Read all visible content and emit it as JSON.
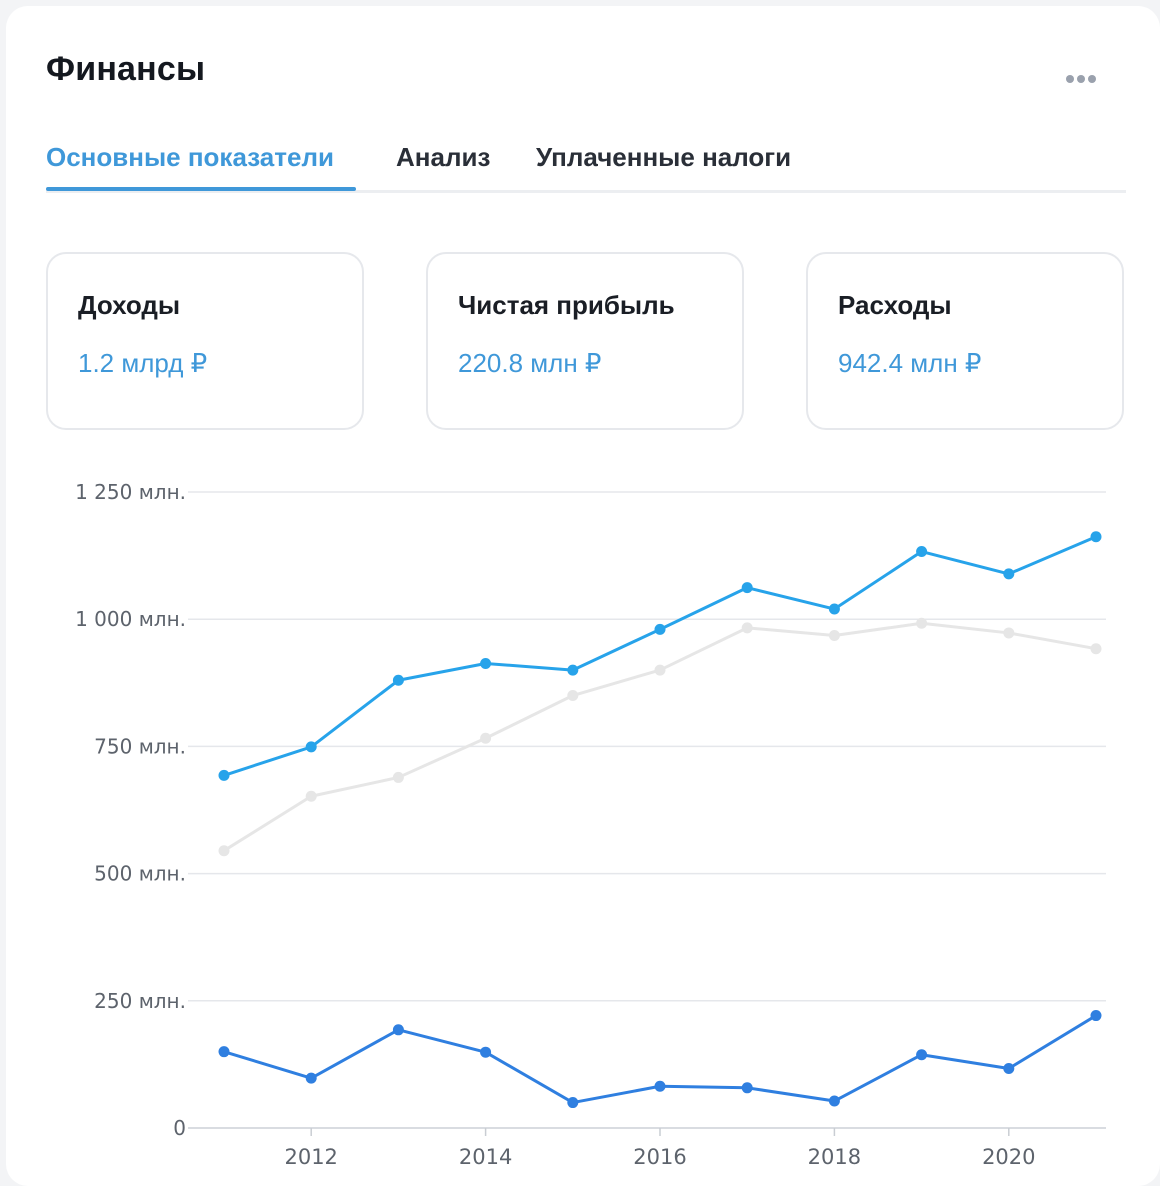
{
  "header": {
    "title": "Финансы",
    "more_icon": "more-horizontal-icon"
  },
  "tabs": [
    {
      "label": "Основные показатели",
      "active": true
    },
    {
      "label": "Анализ",
      "active": false
    },
    {
      "label": "Уплаченные налоги",
      "active": false
    }
  ],
  "metrics": [
    {
      "label": "Доходы",
      "value": "1.2 млрд ₽"
    },
    {
      "label": "Чистая прибыль",
      "value": "220.8 млн ₽"
    },
    {
      "label": "Расходы",
      "value": "942.4 млн ₽"
    }
  ],
  "colors": {
    "accent": "#3f98d9",
    "income": "#27a3ea",
    "expenses": "#e6e6e6",
    "profit": "#2f7fe0",
    "grid": "#e5e7eb"
  },
  "chart_data": {
    "type": "line",
    "x": [
      2011,
      2012,
      2013,
      2014,
      2015,
      2016,
      2017,
      2018,
      2019,
      2020,
      2021
    ],
    "xticks": [
      "2012",
      "2014",
      "2016",
      "2018",
      "2020"
    ],
    "xtick_values": [
      2012,
      2014,
      2016,
      2018,
      2020
    ],
    "yticks": [
      "0",
      "250 млн.",
      "500 млн.",
      "750 млн.",
      "1 000 млн.",
      "1 250 млн."
    ],
    "ytick_values": [
      0,
      250,
      500,
      750,
      1000,
      1250
    ],
    "ylim": [
      0,
      1250
    ],
    "xlim": [
      2011,
      2021
    ],
    "grid": true,
    "series": [
      {
        "key": "income",
        "values": [
          693,
          749,
          880,
          913,
          900,
          980,
          1062,
          1020,
          1133,
          1089,
          1162
        ]
      },
      {
        "key": "expenses",
        "values": [
          545,
          652,
          689,
          766,
          850,
          900,
          983,
          968,
          992,
          973,
          942
        ]
      },
      {
        "key": "profit",
        "values": [
          150,
          98,
          193,
          149,
          50,
          82,
          79,
          53,
          144,
          117,
          221
        ]
      }
    ]
  }
}
